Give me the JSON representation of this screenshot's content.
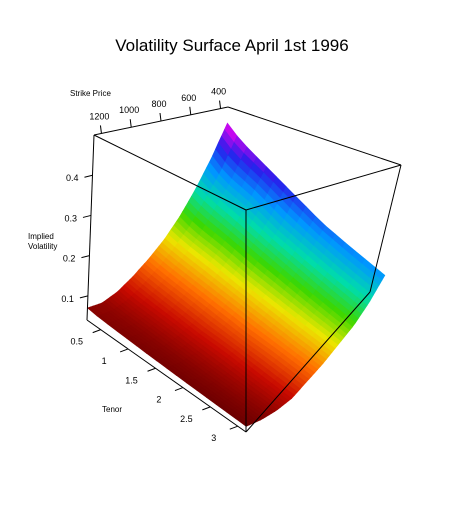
{
  "chart_data": {
    "type": "surface",
    "title": "Volatility Surface April 1st 1996",
    "axes": {
      "strike": {
        "label": "Strike Price",
        "ticks": [
          1200,
          1000,
          800,
          600,
          400
        ],
        "range": [
          350,
          1250
        ]
      },
      "tenor": {
        "label": "Tenor",
        "ticks": [
          0.5,
          1,
          1.5,
          2,
          2.5,
          3
        ],
        "range": [
          0.25,
          3.15
        ]
      },
      "vol": {
        "label": [
          "Implied",
          "Volatility"
        ],
        "ticks": [
          0.1,
          0.2,
          0.3,
          0.4
        ],
        "range": [
          0.04,
          0.5
        ]
      }
    },
    "surface": {
      "strikes": [
        350,
        450,
        550,
        650,
        750,
        850,
        950,
        1050,
        1150,
        1250
      ],
      "tenors": [
        0.25,
        0.5,
        1,
        1.5,
        2,
        2.5,
        3.15
      ],
      "implied_volatility": [
        [
          0.46,
          0.44,
          0.42,
          0.4,
          0.38,
          0.37,
          0.36
        ],
        [
          0.38,
          0.36,
          0.35,
          0.33,
          0.32,
          0.31,
          0.3
        ],
        [
          0.31,
          0.3,
          0.29,
          0.28,
          0.27,
          0.26,
          0.25
        ],
        [
          0.25,
          0.24,
          0.235,
          0.225,
          0.22,
          0.215,
          0.21
        ],
        [
          0.2,
          0.195,
          0.19,
          0.185,
          0.18,
          0.175,
          0.17
        ],
        [
          0.16,
          0.155,
          0.15,
          0.145,
          0.14,
          0.14,
          0.135
        ],
        [
          0.125,
          0.12,
          0.115,
          0.11,
          0.11,
          0.105,
          0.1
        ],
        [
          0.095,
          0.09,
          0.088,
          0.085,
          0.082,
          0.08,
          0.078
        ],
        [
          0.075,
          0.072,
          0.07,
          0.068,
          0.066,
          0.065,
          0.063
        ],
        [
          0.07,
          0.066,
          0.063,
          0.06,
          0.058,
          0.056,
          0.054
        ]
      ]
    },
    "colors": {
      "colormap": "rainbow",
      "low": "#6b0000",
      "high": "#ff00ff"
    },
    "box": true,
    "grid": false,
    "legend": "none"
  }
}
